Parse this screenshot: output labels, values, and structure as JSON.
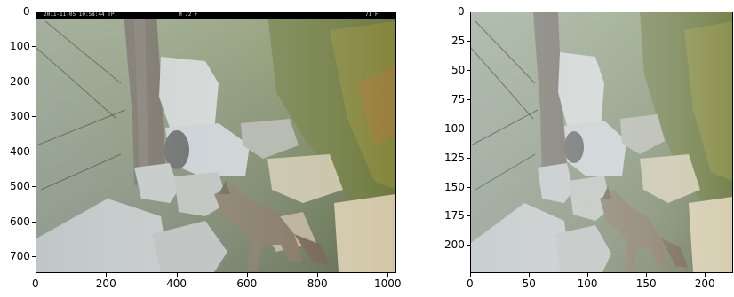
{
  "left_plot": {
    "camera_banner": {
      "left_text": "2011-11-05 10:58:44 TP",
      "mid_text": "M 72 F",
      "right_text": "71 F"
    },
    "x_ticks": [
      {
        "label": "0",
        "value": 0
      },
      {
        "label": "200",
        "value": 200
      },
      {
        "label": "400",
        "value": 400
      },
      {
        "label": "600",
        "value": 600
      },
      {
        "label": "800",
        "value": 800
      },
      {
        "label": "1000",
        "value": 1000
      }
    ],
    "y_ticks": [
      {
        "label": "0",
        "value": 0
      },
      {
        "label": "100",
        "value": 100
      },
      {
        "label": "200",
        "value": 200
      },
      {
        "label": "300",
        "value": 300
      },
      {
        "label": "400",
        "value": 400
      },
      {
        "label": "500",
        "value": 500
      },
      {
        "label": "600",
        "value": 600
      },
      {
        "label": "700",
        "value": 700
      }
    ],
    "x_range": [
      0,
      1024
    ],
    "y_range": [
      0,
      747
    ]
  },
  "right_plot": {
    "x_ticks": [
      {
        "label": "0",
        "value": 0
      },
      {
        "label": "50",
        "value": 50
      },
      {
        "label": "100",
        "value": 100
      },
      {
        "label": "150",
        "value": 150
      },
      {
        "label": "200",
        "value": 200
      }
    ],
    "y_ticks": [
      {
        "label": "0",
        "value": 0
      },
      {
        "label": "25",
        "value": 25
      },
      {
        "label": "50",
        "value": 50
      },
      {
        "label": "75",
        "value": 75
      },
      {
        "label": "100",
        "value": 100
      },
      {
        "label": "125",
        "value": 125
      },
      {
        "label": "150",
        "value": 150
      },
      {
        "label": "175",
        "value": 175
      },
      {
        "label": "200",
        "value": 200
      }
    ],
    "x_range": [
      0,
      224
    ],
    "y_range": [
      0,
      224
    ]
  }
}
